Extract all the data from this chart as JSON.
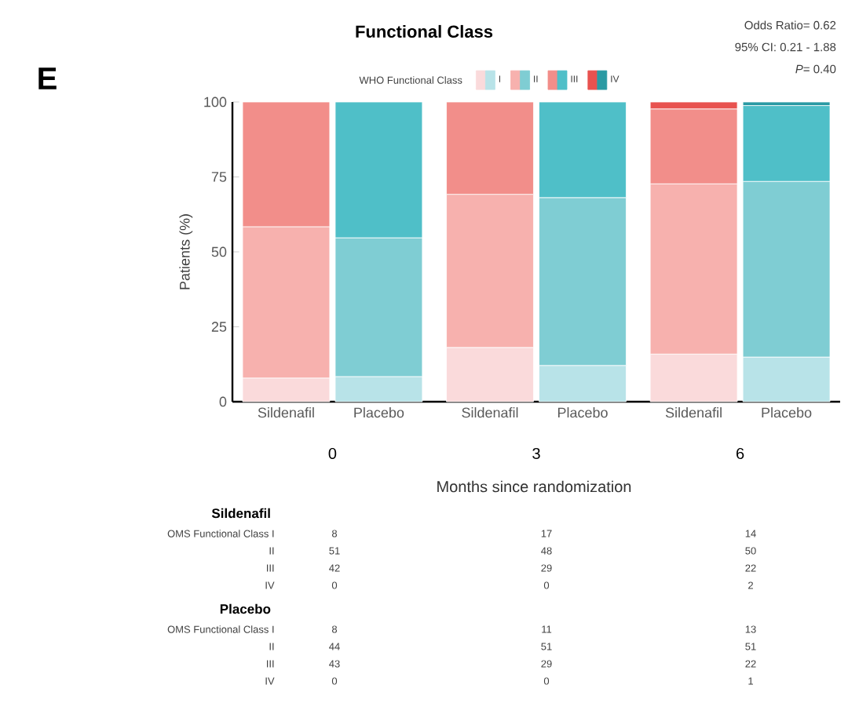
{
  "chart_data": {
    "type": "bar",
    "stacked": true,
    "title": "Functional Class",
    "ylabel": "Patients (%)",
    "xlabel": "Months since randomization",
    "legend_title": "WHO Functional Class",
    "legend": "top",
    "categories": [
      "Sildenafil",
      "Placebo",
      "Sildenafil",
      "Placebo",
      "Sildenafil",
      "Placebo"
    ],
    "ylim": [
      0,
      100
    ],
    "yticks": [
      0,
      25,
      50,
      75,
      100
    ],
    "series": [
      {
        "name": "I",
        "colors": [
          "#fadadb",
          "#b8e3e8",
          "#fadadb",
          "#b8e3e8",
          "#fadadb",
          "#b8e3e8"
        ],
        "values": [
          7.9,
          8.4,
          18.1,
          12.1,
          15.9,
          14.9
        ]
      },
      {
        "name": "II",
        "colors": [
          "#f7b1ae",
          "#7fcdd3",
          "#f7b1ae",
          "#7fcdd3",
          "#f7b1ae",
          "#7fcdd3"
        ],
        "values": [
          50.5,
          46.3,
          51.1,
          56.0,
          56.8,
          58.6
        ]
      },
      {
        "name": "III",
        "colors": [
          "#f28e8a",
          "#4fbfc8",
          "#f28e8a",
          "#4fbfc8",
          "#f28e8a",
          "#4fbfc8"
        ],
        "values": [
          41.6,
          45.3,
          30.8,
          31.9,
          25.0,
          25.3
        ]
      },
      {
        "name": "IV",
        "colors": [
          "#e8524f",
          "#2a9aa3",
          "#e8524f",
          "#2a9aa3",
          "#e8524f",
          "#2a9aa3"
        ],
        "values": [
          0,
          0,
          0,
          0,
          2.3,
          1.2
        ]
      }
    ],
    "annotations": [
      "E",
      "Odds Ratio= 0.62",
      "95% CI: 0.21 - 1.88",
      "*P*= 0.40",
      "0",
      "3",
      "6",
      "Sildenafil",
      "OMS Functional Class I",
      "8",
      "17",
      "14",
      "II",
      "51",
      "48",
      "50",
      "III",
      "42",
      "29",
      "22",
      "IV",
      "0",
      "0",
      "2",
      "Placebo",
      "OMS Functional Class I",
      "8",
      "11",
      "13",
      "II",
      "44",
      "51",
      "51",
      "III",
      "43",
      "29",
      "22",
      "IV",
      "0",
      "0",
      "1"
    ]
  }
}
